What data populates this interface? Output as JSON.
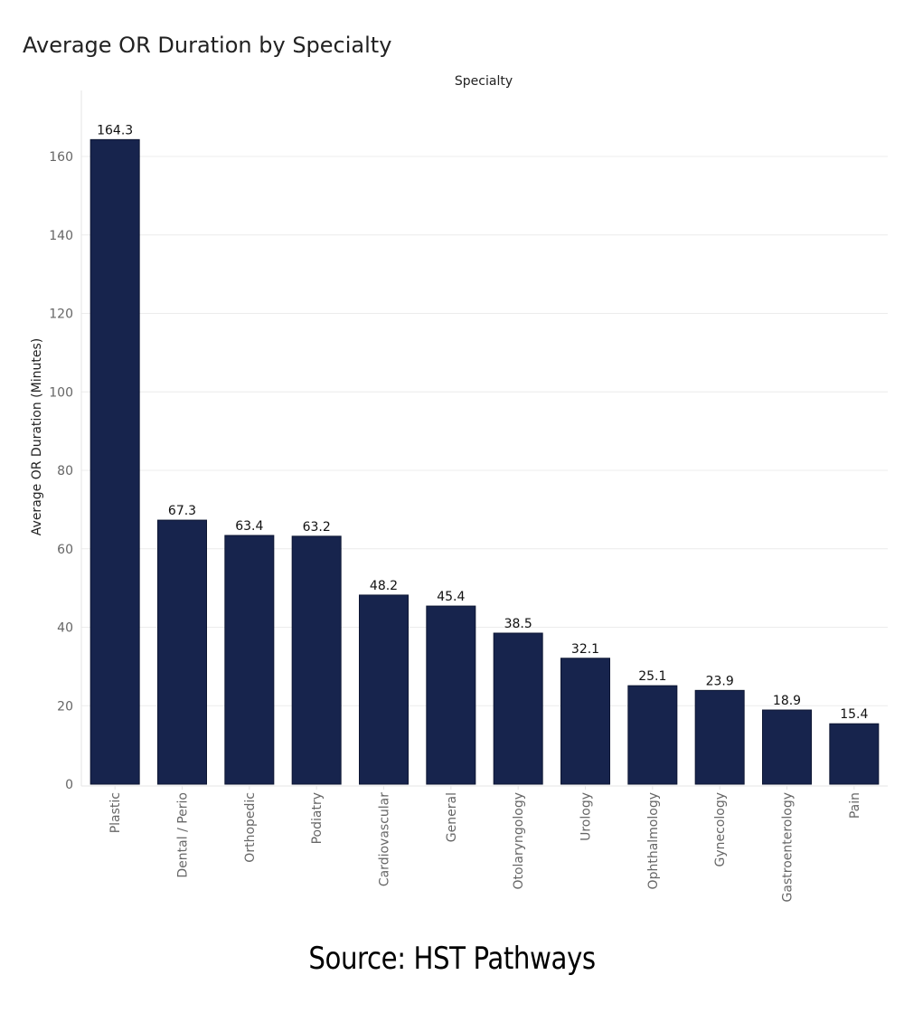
{
  "chart_data": {
    "type": "bar",
    "title": "Average OR Duration by Specialty",
    "facet_label": "Specialty",
    "xlabel": "",
    "ylabel": "Average OR Duration (Minutes)",
    "ylim": [
      0,
      176
    ],
    "yticks": [
      0,
      20,
      40,
      60,
      80,
      100,
      120,
      140,
      160
    ],
    "grid": true,
    "categories": [
      "Plastic",
      "Dental / Perio",
      "Orthopedic",
      "Podiatry",
      "Cardiovascular",
      "General",
      "Otolaryngology",
      "Urology",
      "Ophthalmology",
      "Gynecology",
      "Gastroenterology",
      "Pain"
    ],
    "values": [
      164.3,
      67.3,
      63.4,
      63.2,
      48.2,
      45.4,
      38.5,
      32.1,
      25.1,
      23.9,
      18.9,
      15.4
    ],
    "value_labels": [
      "164.3",
      "67.3",
      "63.4",
      "63.2",
      "48.2",
      "45.4",
      "38.5",
      "32.1",
      "25.1",
      "23.9",
      "18.9",
      "15.4"
    ],
    "colors": {
      "bar_fill": "#17244d",
      "bar_outline": "#0d1633",
      "grid": "#ececec"
    }
  },
  "caption": "Source: HST Pathways"
}
